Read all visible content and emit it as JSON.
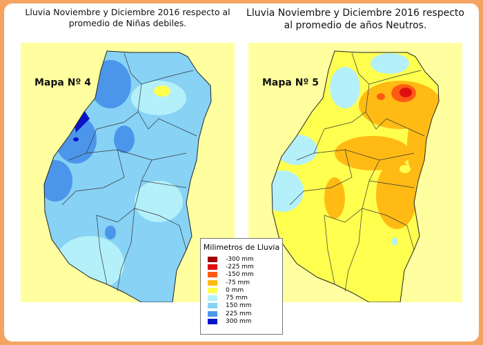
{
  "titles": {
    "left": "Lluvia Noviembre y Diciembre 2016 respecto al promedio de Niñas debiles.",
    "right": "Lluvia Noviembre y Diciembre 2016 respecto al promedio de años Neutros."
  },
  "maps": {
    "left_label": "Mapa Nº 4",
    "right_label": "Mapa Nº 5"
  },
  "legend": {
    "title": "Milimetros de Lluvia",
    "items": [
      {
        "label": "-300 mm",
        "color": "#a00000"
      },
      {
        "label": "-225 mm",
        "color": "#dd1010"
      },
      {
        "label": "-150 mm",
        "color": "#ff5a14"
      },
      {
        "label": "-75 mm",
        "color": "#ffbb14"
      },
      {
        "label": "0 mm",
        "color": "#ffff50"
      },
      {
        "label": "75 mm",
        "color": "#b4f0fa"
      },
      {
        "label": "150 mm",
        "color": "#87d2f5"
      },
      {
        "label": "225 mm",
        "color": "#4b96eb"
      },
      {
        "label": "300 mm",
        "color": "#0a14c8"
      }
    ]
  }
}
